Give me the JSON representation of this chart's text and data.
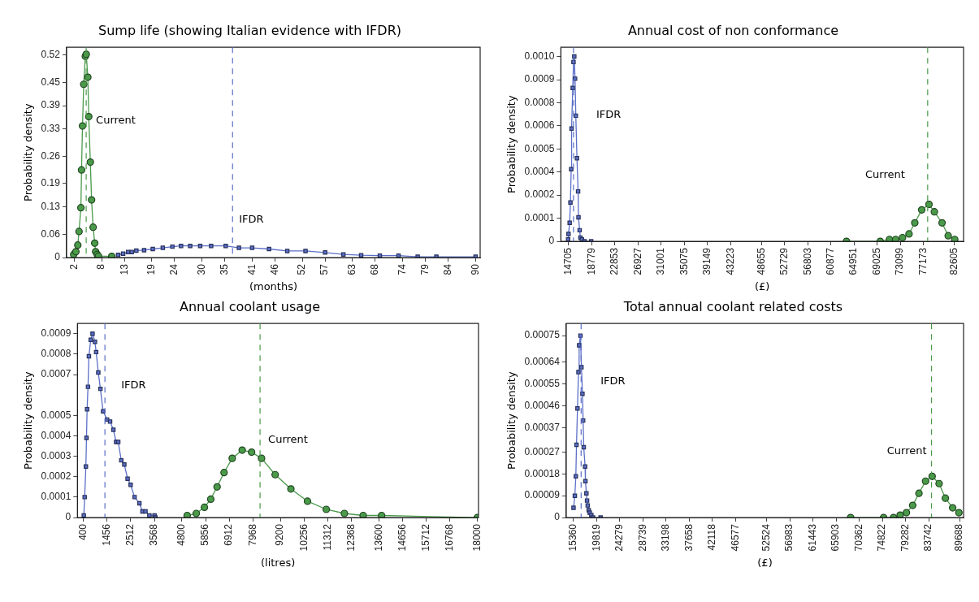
{
  "chart_data": [
    {
      "type": "line",
      "title": "Sump life (showing Italian evidence with IFDR)",
      "xlabel": "(months)",
      "ylabel": "Probability density",
      "xlim": [
        0.3,
        91
      ],
      "ylim": [
        0,
        0.54
      ],
      "xticks": [
        2,
        8,
        13,
        19,
        24,
        30,
        35,
        41,
        46,
        52,
        57,
        63,
        68,
        74,
        79,
        84,
        90
      ],
      "yticks": [
        0,
        0.06,
        0.13,
        0.19,
        0.26,
        0.33,
        0.39,
        0.45,
        0.52
      ],
      "grid": false,
      "legend": false,
      "line_style": "solid",
      "series": [
        {
          "color": "#4a9a4a",
          "marker": "circle",
          "x": [
            1.86,
            2.34,
            2.76,
            3.03,
            3.44,
            3.58,
            3.79,
            4.06,
            4.41,
            4.61,
            4.96,
            5.16,
            5.51,
            5.78,
            6.12,
            6.47,
            6.67,
            7.02,
            7.29,
            10.2
          ],
          "values": [
            0.008,
            0.015,
            0.032,
            0.067,
            0.128,
            0.225,
            0.338,
            0.445,
            0.517,
            0.522,
            0.463,
            0.362,
            0.245,
            0.148,
            0.078,
            0.037,
            0.015,
            0.008,
            0.004,
            0.003
          ]
        },
        {
          "color": "#5b6fc8",
          "marker": "square",
          "x": [
            11.6,
            12.7,
            13.8,
            14.6,
            15.6,
            17.3,
            19.2,
            21.4,
            23.5,
            25.4,
            27.4,
            29.6,
            32.0,
            35.2,
            38.1,
            41.0,
            44.7,
            48.7,
            52.7,
            57.0,
            61.0,
            64.9,
            69.0,
            73.1,
            77.3,
            81.4,
            90
          ],
          "values": [
            0.007,
            0.01,
            0.014,
            0.014,
            0.018,
            0.019,
            0.022,
            0.025,
            0.028,
            0.03,
            0.03,
            0.03,
            0.03,
            0.03,
            0.025,
            0.025,
            0.022,
            0.017,
            0.017,
            0.013,
            0.008,
            0.006,
            0.005,
            0.005,
            0.002,
            0.002,
            0.002
          ]
        }
      ],
      "ref_lines": [
        {
          "axis": "x",
          "value": 4.6,
          "color": "#4a9a4a",
          "line_style": "dashed",
          "label": "Current"
        },
        {
          "axis": "x",
          "value": 36.7,
          "color": "#5b6fc8",
          "line_style": "dashed",
          "label": "IFDR"
        }
      ]
    },
    {
      "type": "line",
      "title": "Annual cost of non conformance",
      "xlabel": "(£)",
      "ylabel": "Probability density",
      "xlim": [
        13354,
        84226
      ],
      "ylim": [
        0,
        0.00105
      ],
      "xticks": [
        14705,
        18779,
        22853,
        26927,
        31001,
        35075,
        39149,
        43223,
        48655,
        52729,
        56803,
        60877,
        64951,
        69025,
        73099,
        77173,
        82605
      ],
      "yticks": [
        0,
        {
          "value": 0.000125,
          "label": "0.0001"
        },
        {
          "value": 0.00025,
          "label": "0.0002"
        },
        {
          "value": 0.000375,
          "label": "0.0004"
        },
        {
          "value": 0.0005,
          "label": "0.0005"
        },
        {
          "value": 0.000625,
          "label": "0.0006"
        },
        {
          "value": 0.00075,
          "label": "0.0008"
        },
        {
          "value": 0.000875,
          "label": "0.0009"
        },
        {
          "value": 0.001,
          "label": "0.0010"
        }
      ],
      "grid": false,
      "legend": false,
      "line_style": "solid",
      "series": [
        {
          "color": "#5b6fc8",
          "marker": "square",
          "x": [
            14637,
            14705,
            14908,
            15043,
            15178,
            15245,
            15448,
            15583,
            15718,
            15854,
            15989,
            16191,
            16394,
            16462,
            16664,
            16799,
            17070,
            17543,
            18691
          ],
          "values": [
            1e-05,
            4e-05,
            0.0001,
            0.00021,
            0.00039,
            0.00061,
            0.00083,
            0.00097,
            0.001,
            0.00088,
            0.00068,
            0.00045,
            0.00027,
            0.00013,
            6e-05,
            2e-05,
            1e-05,
            0,
            0
          ]
        },
        {
          "color": "#4a9a4a",
          "marker": "circle",
          "x": [
            63620,
            69565,
            71187,
            72266,
            73482,
            74631,
            75644,
            76860,
            78144,
            79089,
            80441,
            81521,
            82670
          ],
          "values": [
            0,
            0,
            1e-05,
            1e-05,
            2e-05,
            4e-05,
            0.0001,
            0.00017,
            0.0002,
            0.00016,
            0.0001,
            3e-05,
            1e-05
          ]
        }
      ],
      "ref_lines": [
        {
          "axis": "x",
          "value": 15583,
          "color": "#5b6fc8",
          "line_style": "dashed",
          "label": "IFDR"
        },
        {
          "axis": "x",
          "value": 77910,
          "color": "#4a9a4a",
          "line_style": "dashed",
          "label": "Current"
        }
      ]
    },
    {
      "type": "line",
      "title": "Annual coolant usage",
      "xlabel": "(litres)",
      "ylabel": "Probability density",
      "xlim": [
        130,
        18050
      ],
      "ylim": [
        0,
        0.00095
      ],
      "xticks": [
        400,
        1456,
        2512,
        3568,
        4800,
        5856,
        6912,
        7968,
        9200,
        10256,
        11312,
        12368,
        13600,
        14656,
        15712,
        16768,
        18000
      ],
      "yticks": [
        0,
        0.0001,
        0.0002,
        0.0003,
        0.0004,
        0.0005,
        0.0007,
        0.0008,
        0.0009
      ],
      "grid": false,
      "legend": false,
      "line_style": "solid",
      "series": [
        {
          "color": "#5b6fc8",
          "marker": "square",
          "x": [
            414,
            454,
            508,
            535,
            562,
            603,
            643,
            724,
            805,
            913,
            967,
            1062,
            1157,
            1278,
            1454,
            1589,
            1737,
            1859,
            1954,
            2089,
            2224,
            2372,
            2508,
            2683,
            2899,
            3034,
            3170,
            3345,
            3575,
            3615
          ],
          "values": [
            1e-05,
            0.0001,
            0.00025,
            0.00039,
            0.00053,
            0.00064,
            0.00079,
            0.00087,
            0.0009,
            0.00086,
            0.00081,
            0.00071,
            0.00063,
            0.00052,
            0.00048,
            0.00047,
            0.00043,
            0.00037,
            0.00037,
            0.00028,
            0.00026,
            0.00019,
            0.00016,
            0.0001,
            7e-05,
            3e-05,
            3e-05,
            1e-05,
            1e-05,
            0
          ]
        },
        {
          "color": "#4a9a4a",
          "marker": "circle",
          "x": [
            5034,
            5439,
            5804,
            6088,
            6371,
            6682,
            7047,
            7493,
            7912,
            8357,
            8965,
            9668,
            10411,
            11249,
            12059,
            12897,
            13721,
            18000
          ],
          "values": [
            1e-05,
            2e-05,
            5e-05,
            9e-05,
            0.00015,
            0.00022,
            0.00029,
            0.00033,
            0.00032,
            0.00029,
            0.00021,
            0.00014,
            8e-05,
            4e-05,
            2e-05,
            1e-05,
            1e-05,
            0
          ]
        }
      ],
      "ref_lines": [
        {
          "axis": "x",
          "value": 1359,
          "color": "#5b6fc8",
          "line_style": "dashed",
          "label": "IFDR"
        },
        {
          "axis": "x",
          "value": 8290,
          "color": "#4a9a4a",
          "line_style": "dashed",
          "label": "Current"
        }
      ]
    },
    {
      "type": "line",
      "title": "Total annual coolant related costs",
      "xlabel": "(£)",
      "ylabel": "Probability density",
      "xlim": [
        13961,
        90451
      ],
      "ylim": [
        0,
        0.0008
      ],
      "xticks": [
        15360,
        19819,
        24279,
        28739,
        33198,
        37658,
        42118,
        46577,
        52524,
        56983,
        61443,
        65903,
        70362,
        74822,
        79282,
        83742,
        89688
      ],
      "yticks": [
        0,
        {
          "value": 9e-05,
          "label": "0.00009"
        },
        0.00018,
        0.00027,
        0.00037,
        0.00046,
        0.00055,
        0.00064,
        0.00075
      ],
      "grid": false,
      "legend": false,
      "line_style": "solid",
      "series": [
        {
          "color": "#5b6fc8",
          "marker": "square",
          "x": [
            15360,
            15614,
            15805,
            15932,
            16123,
            16314,
            16441,
            16695,
            16886,
            17077,
            17204,
            17331,
            17585,
            17649,
            17840,
            17967,
            18094,
            18285,
            18475,
            18793,
            19111,
            20573
          ],
          "values": [
            4e-05,
            9e-05,
            0.00017,
            0.0003,
            0.00045,
            0.0006,
            0.00071,
            0.00075,
            0.00062,
            0.00051,
            0.0004,
            0.00029,
            0.00021,
            0.00015,
            0.0001,
            7e-05,
            5e-05,
            3e-05,
            2e-05,
            1e-05,
            0,
            0
          ]
        },
        {
          "color": "#4a9a4a",
          "marker": "circle",
          "x": [
            68703,
            75061,
            76968,
            78240,
            79448,
            80656,
            81864,
            83136,
            84407,
            85743,
            86951,
            88350,
            89558
          ],
          "values": [
            0,
            0,
            0,
            1e-05,
            2e-05,
            5e-05,
            0.0001,
            0.00015,
            0.00017,
            0.00014,
            8e-05,
            4e-05,
            2e-05
          ]
        }
      ],
      "ref_lines": [
        {
          "axis": "x",
          "value": 16822,
          "color": "#5b6fc8",
          "line_style": "dashed",
          "label": "IFDR"
        },
        {
          "axis": "x",
          "value": 84280,
          "color": "#4a9a4a",
          "line_style": "dashed",
          "label": "Current"
        }
      ]
    }
  ]
}
